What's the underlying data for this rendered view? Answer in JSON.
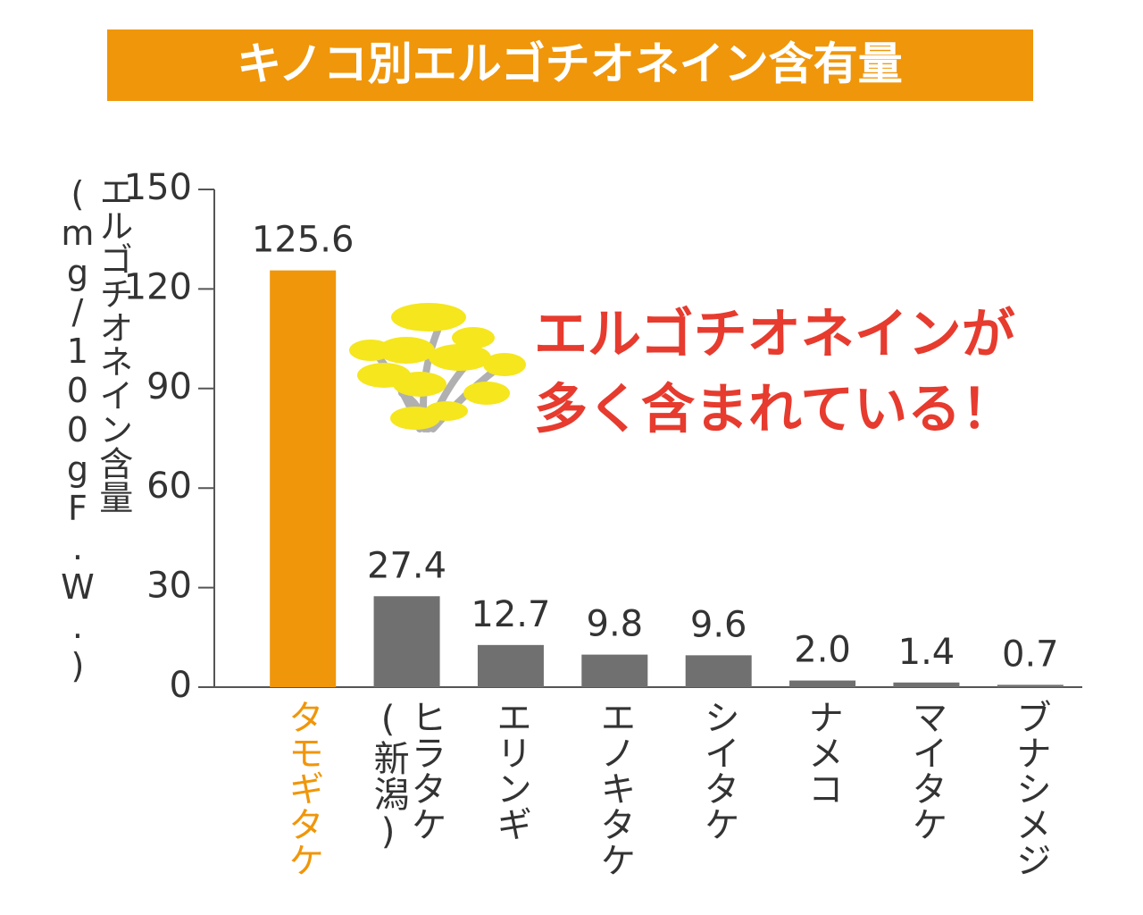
{
  "chart_data": {
    "type": "bar",
    "title": "キノコ別エルゴチオネイン含有量",
    "y_label": "エルゴチオネイン含量(mg/100gF.W.)",
    "annotation": [
      "エルゴチオネインが",
      "多く含まれている！"
    ],
    "categories": [
      "タモギタケ",
      "ヒラタケ(新潟)",
      "エリンギ",
      "エノキタケ",
      "シイタケ",
      "ナメコ",
      "マイタケ",
      "ブナシメジ"
    ],
    "values": [
      125.6,
      27.4,
      12.7,
      9.8,
      9.6,
      2.0,
      1.4,
      0.7
    ],
    "value_labels": [
      "125.6",
      "27.4",
      "12.7",
      "9.8",
      "9.6",
      "2.0",
      "1.4",
      "0.7"
    ],
    "color": "#707070",
    "highlight": 0,
    "highlight_color": "#f0960a",
    "ylim": [
      0,
      150
    ],
    "yticks": [
      0,
      30,
      60,
      90,
      120,
      150
    ],
    "grid": false
  }
}
